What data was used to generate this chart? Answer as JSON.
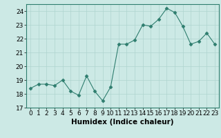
{
  "x": [
    0,
    1,
    2,
    3,
    4,
    5,
    6,
    7,
    8,
    9,
    10,
    11,
    12,
    13,
    14,
    15,
    16,
    17,
    18,
    19,
    20,
    21,
    22,
    23
  ],
  "y": [
    18.4,
    18.7,
    18.7,
    18.6,
    19.0,
    18.2,
    17.9,
    19.3,
    18.2,
    17.5,
    18.5,
    21.6,
    21.6,
    21.9,
    23.0,
    22.9,
    23.4,
    24.2,
    23.9,
    22.9,
    21.6,
    21.8,
    22.4,
    21.6
  ],
  "xlabel": "Humidex (Indice chaleur)",
  "ylim": [
    17,
    24.5
  ],
  "yticks": [
    17,
    18,
    19,
    20,
    21,
    22,
    23,
    24
  ],
  "xticks": [
    0,
    1,
    2,
    3,
    4,
    5,
    6,
    7,
    8,
    9,
    10,
    11,
    12,
    13,
    14,
    15,
    16,
    17,
    18,
    19,
    20,
    21,
    22,
    23
  ],
  "line_color": "#2e7d6e",
  "marker": "D",
  "marker_size": 2.5,
  "bg_color": "#cce9e5",
  "grid_color": "#aed4cf",
  "spine_color": "#2e7d6e",
  "tick_label_fontsize": 6.5,
  "xlabel_fontsize": 7.5
}
